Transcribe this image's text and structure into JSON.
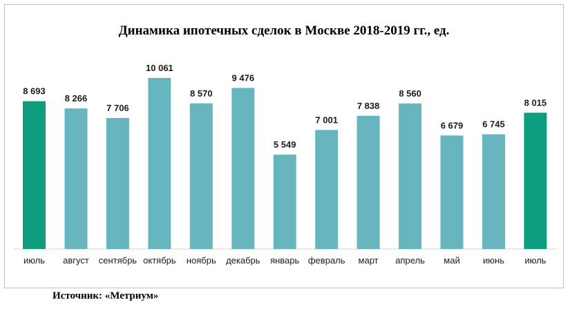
{
  "chart_data": {
    "type": "bar",
    "title": "Динамика ипотечных сделок в Москве 2018-2019 гг., ед.",
    "categories": [
      "июль",
      "август",
      "сентябрь",
      "октябрь",
      "ноябрь",
      "декабрь",
      "январь",
      "февраль",
      "март",
      "апрель",
      "май",
      "июнь",
      "июль"
    ],
    "values": [
      8693,
      8266,
      7706,
      10061,
      8570,
      9476,
      5549,
      7001,
      7838,
      8560,
      6679,
      6745,
      8015
    ],
    "value_labels": [
      "8 693",
      "8 266",
      "7 706",
      "10 061",
      "8 570",
      "9 476",
      "5 549",
      "7 001",
      "7 838",
      "8 560",
      "6 679",
      "6 745",
      "8 015"
    ],
    "highlight": [
      true,
      false,
      false,
      false,
      false,
      false,
      false,
      false,
      false,
      false,
      false,
      false,
      true
    ],
    "colors": {
      "default": "#67b6be",
      "highlight": "#0e9e7f"
    },
    "ylim": [
      0,
      10061
    ],
    "xlabel": "",
    "ylabel": "",
    "grid": false,
    "legend": "none"
  },
  "source": "Источник: «Метриум»"
}
